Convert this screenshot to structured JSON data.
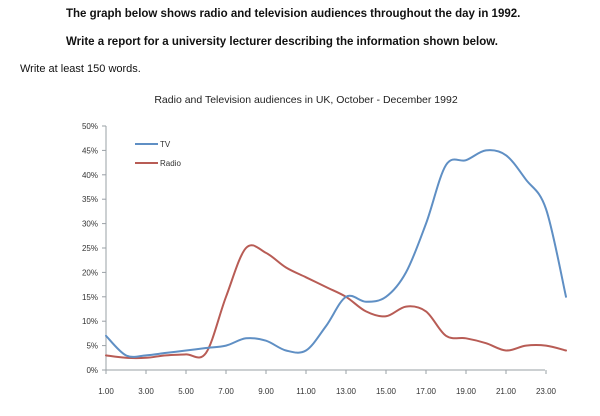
{
  "prompt": {
    "line1": "The graph below shows radio and television audiences throughout the day in 1992.",
    "line2": "Write a report for a university lecturer describing the information shown below.",
    "line3": "Write at least 150 words."
  },
  "colors": {
    "tv": "#5f8fc4",
    "radio": "#b85c55",
    "axis": "#9aa0a6",
    "text": "#333333"
  },
  "chart_data": {
    "type": "line",
    "title": "Radio and Television audiences in UK, October - December 1992",
    "xlabel": "",
    "ylabel": "",
    "ylim": [
      0,
      50
    ],
    "yticks": [
      0,
      5,
      10,
      15,
      20,
      25,
      30,
      35,
      40,
      45,
      50
    ],
    "ytick_labels": [
      "0%",
      "5%",
      "10%",
      "15%",
      "20%",
      "25%",
      "30%",
      "35%",
      "40%",
      "45%",
      "50%"
    ],
    "xlim": [
      1,
      24
    ],
    "xticks": [
      1,
      3,
      5,
      7,
      9,
      11,
      13,
      15,
      17,
      19,
      21,
      23
    ],
    "xtick_labels": [
      "1.00",
      "3.00",
      "5.00",
      "7.00",
      "9.00",
      "11.00",
      "13.00",
      "15.00",
      "17.00",
      "19.00",
      "21.00",
      "23.00"
    ],
    "legend_position": "top-left",
    "grid": false,
    "series": [
      {
        "name": "TV",
        "color": "#5f8fc4",
        "x": [
          1,
          2,
          3,
          4,
          5,
          6,
          7,
          8,
          9,
          10,
          11,
          12,
          13,
          14,
          15,
          16,
          17,
          18,
          19,
          20,
          21,
          22,
          23,
          24
        ],
        "y": [
          7,
          3,
          3,
          3.5,
          4,
          4.5,
          5,
          6.5,
          6,
          4,
          4,
          9,
          15,
          14,
          15,
          20,
          30,
          42,
          43,
          45,
          44,
          39,
          33,
          15
        ]
      },
      {
        "name": "Radio",
        "color": "#b85c55",
        "x": [
          1,
          2,
          3,
          4,
          5,
          6,
          7,
          8,
          9,
          10,
          11,
          12,
          13,
          14,
          15,
          16,
          17,
          18,
          19,
          20,
          21,
          22,
          23,
          24
        ],
        "y": [
          3,
          2.5,
          2.5,
          3,
          3.2,
          3.5,
          15,
          25,
          24,
          21,
          19,
          17,
          15,
          12,
          11,
          13,
          12,
          7,
          6.5,
          5.5,
          4,
          5,
          5,
          4
        ]
      }
    ]
  }
}
